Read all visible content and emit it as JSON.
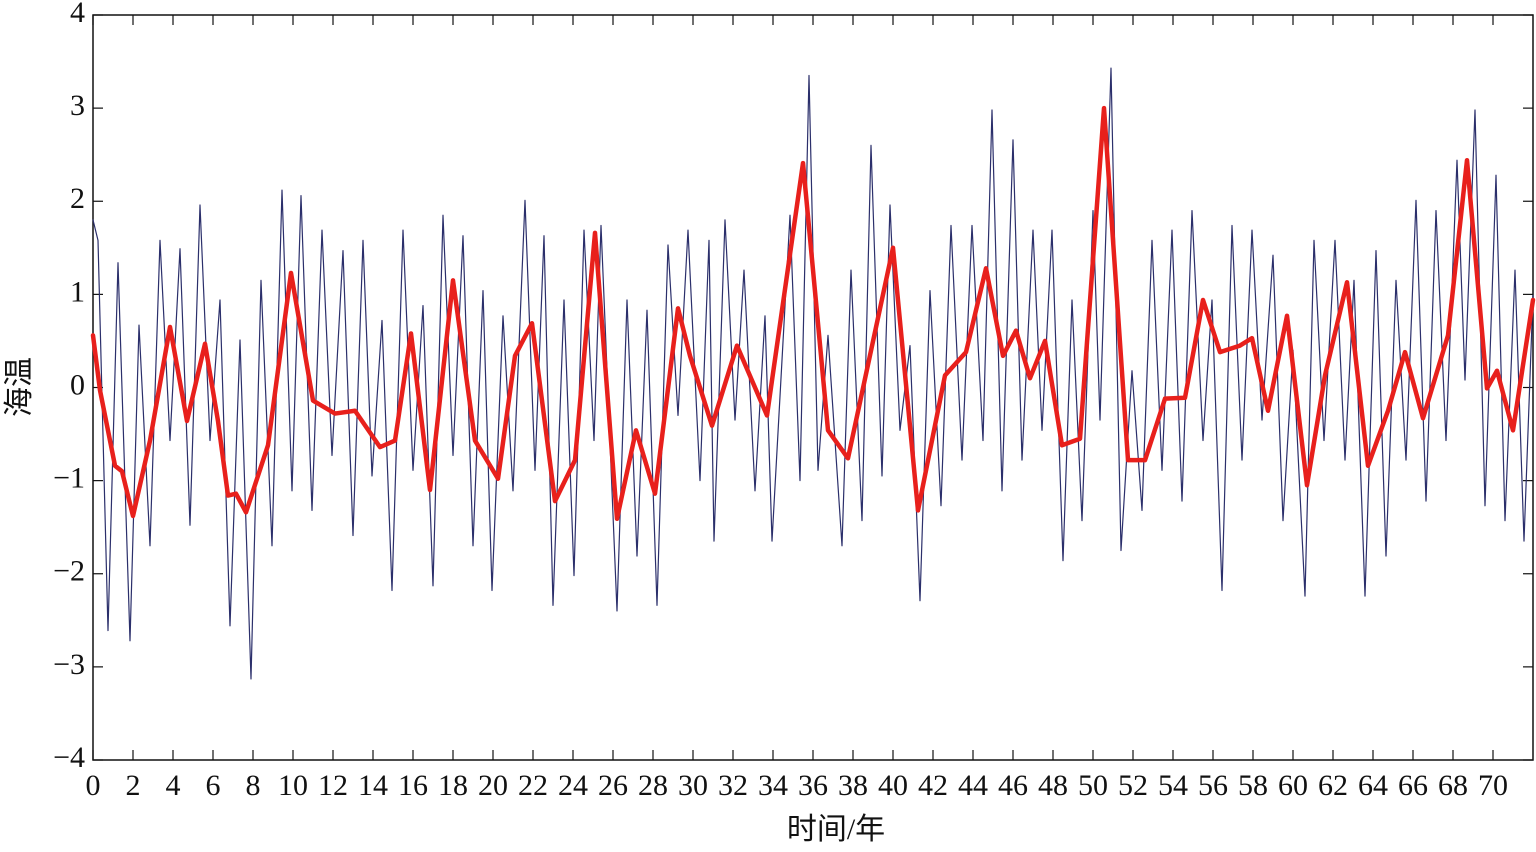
{
  "chart_data": {
    "type": "line",
    "xlabel": "时间/年",
    "ylabel": "海温",
    "xlim": [
      0,
      72
    ],
    "ylim": [
      -4,
      4
    ],
    "xticks": [
      0,
      2,
      4,
      6,
      8,
      10,
      12,
      14,
      16,
      18,
      20,
      22,
      24,
      26,
      28,
      30,
      32,
      34,
      36,
      38,
      40,
      42,
      44,
      46,
      48,
      50,
      52,
      54,
      56,
      58,
      60,
      62,
      64,
      66,
      68,
      70
    ],
    "yticks": [
      {
        "value": -4,
        "label": "−4"
      },
      {
        "value": -3,
        "label": "−3"
      },
      {
        "value": -2,
        "label": "−2"
      },
      {
        "value": -1,
        "label": "−1"
      },
      0,
      1,
      2,
      3,
      4
    ],
    "series": [
      {
        "color": "#2b2f6b",
        "width": 1.2,
        "x": [
          0,
          0.25,
          0.75,
          1.25,
          1.85,
          2.3,
          2.85,
          3.35,
          3.85,
          4.35,
          4.85,
          5.35,
          5.85,
          6.35,
          6.85,
          7.35,
          7.9,
          8.4,
          8.95,
          9.45,
          9.95,
          10.4,
          10.95,
          11.45,
          11.95,
          12.5,
          13,
          13.5,
          13.95,
          14.45,
          14.95,
          15.5,
          16,
          16.5,
          17,
          17.5,
          18,
          18.5,
          19,
          19.5,
          19.95,
          20.5,
          21,
          21.6,
          22.1,
          22.55,
          23,
          23.55,
          24.05,
          24.55,
          25.05,
          25.4,
          26.2,
          26.7,
          27.2,
          27.7,
          28.2,
          28.75,
          29.25,
          29.75,
          30.35,
          30.8,
          31.05,
          31.6,
          32.1,
          32.55,
          33.1,
          33.6,
          33.95,
          34.85,
          35.35,
          35.8,
          36.25,
          36.75,
          37.45,
          37.9,
          38.45,
          38.9,
          39.45,
          39.85,
          40.35,
          40.85,
          41.35,
          41.85,
          42.4,
          42.9,
          43.45,
          43.95,
          44.5,
          44.95,
          45.45,
          46,
          46.45,
          47,
          47.45,
          47.95,
          48.5,
          48.95,
          49.45,
          50,
          50.35,
          50.9,
          51.4,
          51.95,
          52.45,
          52.95,
          53.45,
          53.95,
          54.45,
          54.95,
          55.5,
          55.95,
          56.45,
          56.95,
          57.45,
          57.95,
          58.45,
          59,
          59.5,
          60,
          60.6,
          61.05,
          61.55,
          62.1,
          62.6,
          63.05,
          63.6,
          64.15,
          64.65,
          65.15,
          65.65,
          66.15,
          66.65,
          67.15,
          67.65,
          68.2,
          68.6,
          69.1,
          69.6,
          70.15,
          70.6,
          71.1,
          71.55,
          72
        ],
        "values": [
          1.8,
          1.58,
          -2.61,
          1.34,
          -2.72,
          0.67,
          -1.7,
          1.58,
          -0.57,
          1.49,
          -1.48,
          1.96,
          -0.57,
          0.94,
          -2.56,
          0.51,
          -3.13,
          1.15,
          -1.7,
          2.12,
          -1.11,
          2.06,
          -1.32,
          1.69,
          -0.73,
          1.47,
          -1.59,
          1.58,
          -0.95,
          0.72,
          -2.18,
          1.69,
          -0.89,
          0.88,
          -2.13,
          1.85,
          -0.73,
          1.63,
          -1.7,
          1.04,
          -2.18,
          0.77,
          -1.11,
          2.01,
          -0.89,
          1.63,
          -2.34,
          0.94,
          -2.02,
          1.69,
          -0.57,
          1.74,
          -2.4,
          0.94,
          -1.81,
          0.83,
          -2.34,
          1.53,
          -0.3,
          1.69,
          -1.0,
          1.58,
          -1.65,
          1.8,
          -0.35,
          1.26,
          -1.11,
          0.77,
          -1.65,
          1.85,
          -1.0,
          3.35,
          -0.89,
          0.56,
          -1.7,
          1.26,
          -1.43,
          2.6,
          -0.95,
          1.96,
          -0.46,
          0.45,
          -2.29,
          1.04,
          -1.27,
          1.74,
          -0.78,
          1.74,
          -0.57,
          2.98,
          -1.11,
          2.66,
          -0.78,
          1.69,
          -0.46,
          1.69,
          -1.86,
          0.94,
          -1.43,
          1.9,
          -0.35,
          3.43,
          -1.75,
          0.18,
          -1.32,
          1.58,
          -0.89,
          1.69,
          -1.22,
          1.9,
          -0.57,
          0.94,
          -2.18,
          1.74,
          -0.78,
          1.69,
          -0.35,
          1.42,
          -1.43,
          0.4,
          -2.24,
          1.58,
          -0.57,
          1.58,
          -0.78,
          1.15,
          -2.24,
          1.47,
          -1.81,
          1.15,
          -0.78,
          2.01,
          -1.22,
          1.9,
          -0.57,
          2.44,
          0.08,
          2.98,
          -1.27,
          2.28,
          -1.43,
          1.26,
          -1.65,
          0.99
        ]
      },
      {
        "color": "#e8201c",
        "width": 4.5,
        "x": [
          0,
          0.35,
          1.1,
          1.45,
          2,
          2.85,
          3.85,
          4.7,
          5.6,
          6.25,
          6.75,
          7.15,
          7.65,
          8.75,
          9.9,
          11,
          12.1,
          13.1,
          14.35,
          15.1,
          15.9,
          16.85,
          18,
          19.1,
          20.25,
          21.1,
          21.95,
          23.1,
          24.1,
          25.1,
          26.2,
          27.15,
          28.1,
          29.25,
          29.85,
          30.95,
          32.2,
          33.7,
          35.5,
          36.75,
          37.75,
          40,
          41.25,
          42.6,
          43.65,
          44.65,
          45.5,
          46.15,
          46.85,
          47.6,
          48.45,
          49.35,
          50.55,
          51.75,
          52.6,
          53.6,
          54.6,
          55.5,
          56.35,
          57.35,
          57.95,
          58.75,
          59.7,
          60.7,
          61.6,
          62.7,
          63.75,
          64.75,
          65.6,
          66.5,
          67.75,
          68.7,
          69.7,
          70.2,
          71,
          72
        ],
        "values": [
          0.56,
          -0.03,
          -0.84,
          -0.9,
          -1.38,
          -0.57,
          0.65,
          -0.36,
          0.47,
          -0.36,
          -1.16,
          -1.14,
          -1.34,
          -0.62,
          1.23,
          -0.14,
          -0.28,
          -0.25,
          -0.64,
          -0.57,
          0.58,
          -1.1,
          1.15,
          -0.57,
          -0.98,
          0.34,
          0.69,
          -1.22,
          -0.78,
          1.66,
          -1.41,
          -0.46,
          -1.14,
          0.85,
          0.34,
          -0.41,
          0.45,
          -0.3,
          2.41,
          -0.46,
          -0.76,
          1.5,
          -1.32,
          0.13,
          0.38,
          1.28,
          0.34,
          0.61,
          0.1,
          0.5,
          -0.62,
          -0.55,
          3.0,
          -0.78,
          -0.78,
          -0.12,
          -0.11,
          0.94,
          0.38,
          0.45,
          0.53,
          -0.25,
          0.77,
          -1.05,
          0.13,
          1.13,
          -0.84,
          -0.25,
          0.38,
          -0.33,
          0.56,
          2.44,
          -0.01,
          0.18,
          -0.46,
          0.94
        ]
      }
    ]
  }
}
